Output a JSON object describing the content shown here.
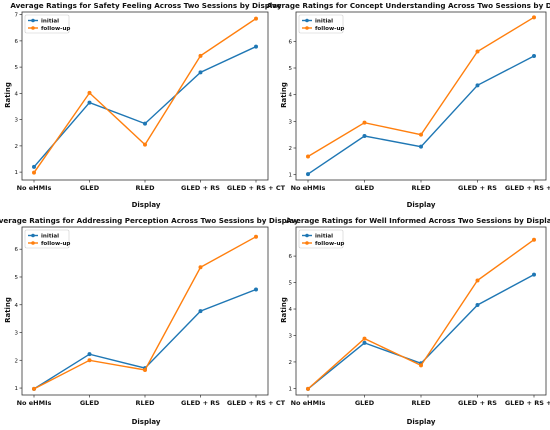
{
  "colors": {
    "initial": "#1f77b4",
    "follow_up": "#ff7f0e"
  },
  "chart_data": [
    {
      "type": "line",
      "title": "Average Ratings for Safety Feeling Across Two Sessions by Display",
      "xlabel": "Display",
      "ylabel": "Rating",
      "categories": [
        "No eHMIs",
        "GLED",
        "RLED",
        "GLED + RS",
        "GLED + RS + CT"
      ],
      "ylim": [
        0.7,
        7.1
      ],
      "yticks": [
        1,
        2,
        3,
        4,
        5,
        6,
        7
      ],
      "legend_position": "top-left",
      "series": [
        {
          "name": "initial",
          "values": [
            1.2,
            3.65,
            2.85,
            4.8,
            5.78
          ]
        },
        {
          "name": "follow-up",
          "values": [
            0.98,
            4.02,
            2.05,
            5.43,
            6.85
          ]
        }
      ]
    },
    {
      "type": "line",
      "title": "Average Ratings for Concept Understanding Across Two Sessions by Display",
      "xlabel": "Display",
      "ylabel": "Rating",
      "categories": [
        "No eHMIs",
        "GLED",
        "RLED",
        "GLED + RS",
        "GLED + RS + CT"
      ],
      "ylim": [
        0.8,
        7.1
      ],
      "yticks": [
        1,
        2,
        3,
        4,
        5,
        6
      ],
      "legend_position": "top-left",
      "series": [
        {
          "name": "initial",
          "values": [
            1.02,
            2.45,
            2.05,
            4.35,
            5.45
          ]
        },
        {
          "name": "follow-up",
          "values": [
            1.68,
            2.95,
            2.5,
            5.62,
            6.9
          ]
        }
      ]
    },
    {
      "type": "line",
      "title": "Average Ratings for Addressing Perception Across Two Sessions by Display",
      "xlabel": "Display",
      "ylabel": "Rating",
      "categories": [
        "No eHMIs",
        "GLED",
        "RLED",
        "GLED + RS",
        "GLED + RS + CT"
      ],
      "ylim": [
        0.75,
        6.8
      ],
      "yticks": [
        1,
        2,
        3,
        4,
        5,
        6
      ],
      "legend_position": "top-left",
      "series": [
        {
          "name": "initial",
          "values": [
            0.97,
            2.22,
            1.72,
            3.77,
            4.55
          ]
        },
        {
          "name": "follow-up",
          "values": [
            0.97,
            2.0,
            1.65,
            5.35,
            6.45
          ]
        }
      ]
    },
    {
      "type": "line",
      "title": "Average Ratings for Well Informed Across Two Sessions by Display",
      "xlabel": "Display",
      "ylabel": "Rating",
      "categories": [
        "No eHMIs",
        "GLED",
        "RLED",
        "GLED + RS",
        "GLED + RS + CT"
      ],
      "ylim": [
        0.75,
        7.1
      ],
      "yticks": [
        1,
        2,
        3,
        4,
        5,
        6
      ],
      "legend_position": "top-left",
      "series": [
        {
          "name": "initial",
          "values": [
            0.98,
            2.72,
            1.95,
            4.15,
            5.3
          ]
        },
        {
          "name": "follow-up",
          "values": [
            0.98,
            2.88,
            1.87,
            5.08,
            6.62
          ]
        }
      ]
    }
  ]
}
